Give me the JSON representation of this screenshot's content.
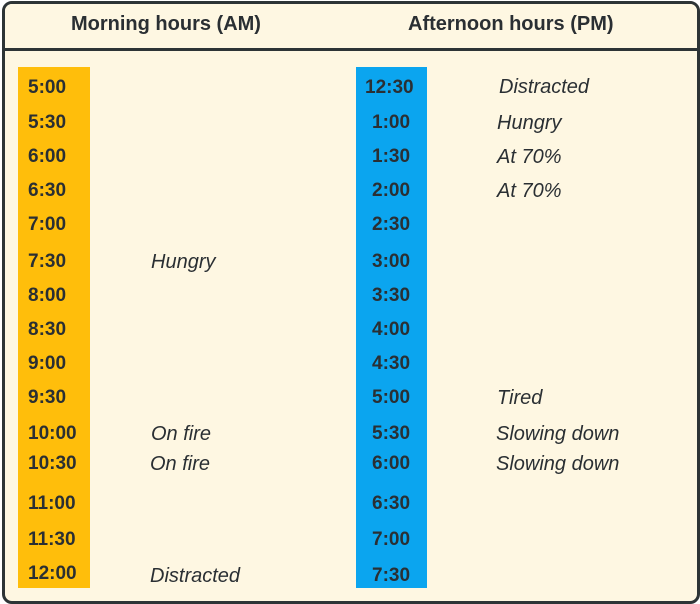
{
  "headers": {
    "morning": "Morning hours (AM)",
    "afternoon": "Afternoon hours (PM)"
  },
  "colors": {
    "background": "#fef7e2",
    "border": "#2d3436",
    "morning_bar": "#ffbe0b",
    "afternoon_bar": "#0ba5ef",
    "text": "#2a2f33"
  },
  "morning": [
    {
      "time": "5:00",
      "note": ""
    },
    {
      "time": "5:30",
      "note": ""
    },
    {
      "time": "6:00",
      "note": ""
    },
    {
      "time": "6:30",
      "note": ""
    },
    {
      "time": "7:00",
      "note": ""
    },
    {
      "time": "7:30",
      "note": "Hungry"
    },
    {
      "time": "8:00",
      "note": ""
    },
    {
      "time": "8:30",
      "note": ""
    },
    {
      "time": "9:00",
      "note": ""
    },
    {
      "time": "9:30",
      "note": ""
    },
    {
      "time": "10:00",
      "note": "On fire"
    },
    {
      "time": "10:30",
      "note": "On fire"
    },
    {
      "time": "11:00",
      "note": ""
    },
    {
      "time": "11:30",
      "note": ""
    },
    {
      "time": "12:00",
      "note": "Distracted"
    }
  ],
  "afternoon": [
    {
      "time": "12:30",
      "note": "Distracted"
    },
    {
      "time": "1:00",
      "note": "Hungry"
    },
    {
      "time": "1:30",
      "note": "At 70%"
    },
    {
      "time": "2:00",
      "note": "At 70%"
    },
    {
      "time": "2:30",
      "note": ""
    },
    {
      "time": "3:00",
      "note": ""
    },
    {
      "time": "3:30",
      "note": ""
    },
    {
      "time": "4:00",
      "note": ""
    },
    {
      "time": "4:30",
      "note": ""
    },
    {
      "time": "5:00",
      "note": "Tired"
    },
    {
      "time": "5:30",
      "note": "Slowing down"
    },
    {
      "time": "6:00",
      "note": "Slowing down"
    },
    {
      "time": "6:30",
      "note": ""
    },
    {
      "time": "7:00",
      "note": ""
    },
    {
      "time": "7:30",
      "note": ""
    }
  ]
}
